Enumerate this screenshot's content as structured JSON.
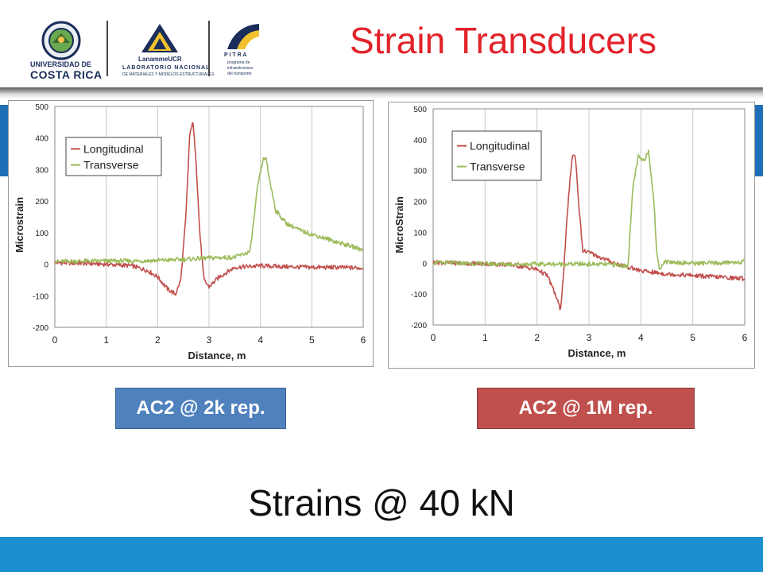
{
  "header": {
    "title": "Strain Transducers",
    "logos": [
      {
        "name": "seal-icon",
        "line1": "UNIVERSIDAD DE",
        "line2": "COSTA RICA"
      },
      {
        "name": "lanamme-logo-icon",
        "line1": "LanammeUCR",
        "line2": "LABORATORIO NACIONAL",
        "line3": "DE MATERIALES Y MODELOS ESTRUCTURALES"
      },
      {
        "name": "pitra-logo-icon",
        "line1": "P I T R A",
        "line2": "programa de",
        "line3": "infraestructura",
        "line4": "del transporte"
      }
    ]
  },
  "labels": {
    "left": "AC2 @ 2k rep.",
    "right": "AC2 @ 1M rep.",
    "caption": "Strains @ 40 kN"
  },
  "colors": {
    "longitudinal": "#c0504d",
    "transverse": "#9bbb59",
    "left_label_bg": "#4f81bd",
    "right_label_bg": "#c0504d",
    "title": "#e2232a",
    "footer": "#1b8fd0"
  },
  "chart_data": [
    {
      "type": "line",
      "xlabel": "Distance, m",
      "ylabel": "Microstrain",
      "xlim": [
        0,
        6
      ],
      "ylim": [
        -200,
        500
      ],
      "xticks": [
        0,
        1,
        2,
        3,
        4,
        5,
        6
      ],
      "yticks": [
        -200,
        -100,
        0,
        100,
        200,
        300,
        400,
        500
      ],
      "grid": "vertical",
      "legend": "top-left",
      "series": [
        {
          "name": "Longitudinal",
          "color": "#c0504d",
          "x": [
            0,
            0.5,
            1.0,
            1.5,
            1.8,
            2.0,
            2.2,
            2.35,
            2.45,
            2.55,
            2.62,
            2.68,
            2.74,
            2.82,
            2.9,
            3.0,
            3.2,
            3.5,
            4.0,
            4.5,
            5.0,
            5.5,
            6.0
          ],
          "y": [
            5,
            3,
            0,
            -5,
            -20,
            -40,
            -80,
            -95,
            -50,
            150,
            400,
            455,
            350,
            100,
            -50,
            -72,
            -40,
            -10,
            -5,
            -8,
            -10,
            -10,
            -12
          ]
        },
        {
          "name": "Transverse",
          "color": "#9bbb59",
          "x": [
            0,
            0.5,
            1.0,
            1.5,
            2.0,
            2.5,
            3.0,
            3.5,
            3.8,
            3.95,
            4.05,
            4.1,
            4.2,
            4.3,
            4.5,
            4.8,
            5.0,
            5.5,
            6.0
          ],
          "y": [
            8,
            10,
            10,
            10,
            12,
            15,
            20,
            22,
            40,
            250,
            330,
            340,
            250,
            170,
            130,
            105,
            95,
            70,
            45
          ]
        }
      ]
    },
    {
      "type": "line",
      "xlabel": "Distance, m",
      "ylabel": "MicroStrain",
      "xlim": [
        0,
        6
      ],
      "ylim": [
        -200,
        500
      ],
      "xticks": [
        0,
        1,
        2,
        3,
        4,
        5,
        6
      ],
      "yticks": [
        -200,
        -100,
        0,
        100,
        200,
        300,
        400,
        500
      ],
      "grid": "vertical",
      "legend": "top-left",
      "series": [
        {
          "name": "Longitudinal",
          "color": "#c0504d",
          "x": [
            0,
            0.5,
            1.0,
            1.5,
            2.0,
            2.2,
            2.35,
            2.45,
            2.5,
            2.6,
            2.68,
            2.74,
            2.8,
            2.88,
            3.0,
            3.2,
            3.5,
            4.0,
            4.5,
            5.0,
            5.5,
            6.0
          ],
          "y": [
            3,
            0,
            -2,
            -5,
            -20,
            -40,
            -100,
            -150,
            -60,
            200,
            350,
            345,
            200,
            40,
            35,
            20,
            0,
            -25,
            -35,
            -40,
            -45,
            -50
          ]
        },
        {
          "name": "Transverse",
          "color": "#9bbb59",
          "x": [
            0,
            0.5,
            1.0,
            1.5,
            2.0,
            2.5,
            3.0,
            3.5,
            3.75,
            3.85,
            3.95,
            4.05,
            4.15,
            4.25,
            4.3,
            4.35,
            4.45,
            5.0,
            5.5,
            6.0
          ],
          "y": [
            2,
            0,
            -2,
            -3,
            -3,
            -3,
            -3,
            -5,
            -10,
            250,
            345,
            330,
            365,
            200,
            50,
            -20,
            5,
            0,
            0,
            5
          ]
        }
      ]
    }
  ]
}
